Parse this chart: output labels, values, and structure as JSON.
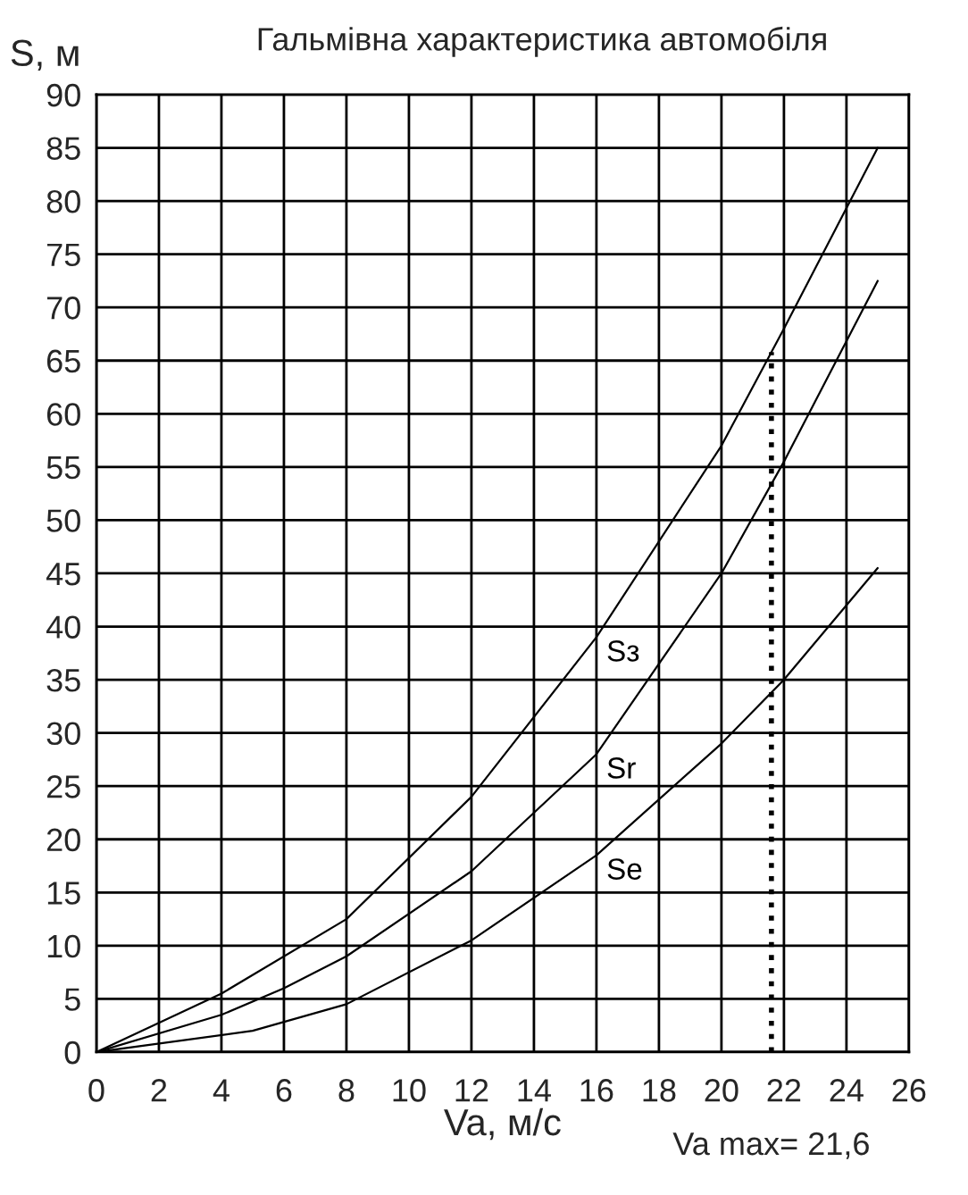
{
  "chart_data": {
    "type": "line",
    "title": "Гальмівна характеристика автомобіля",
    "xlabel": "Va, м/с",
    "ylabel": "S, м",
    "xlim": [
      0,
      26
    ],
    "ylim": [
      0,
      90
    ],
    "xticks": [
      0,
      2,
      4,
      6,
      8,
      10,
      12,
      14,
      16,
      18,
      20,
      22,
      24,
      26
    ],
    "yticks": [
      0,
      5,
      10,
      15,
      20,
      25,
      30,
      35,
      40,
      45,
      50,
      55,
      60,
      65,
      70,
      75,
      80,
      85,
      90
    ],
    "grid": true,
    "legend": false,
    "marker": "none",
    "line_style": "solid",
    "series": [
      {
        "name": "Sз",
        "color": "#000000",
        "x": [
          0,
          4,
          8,
          12,
          16,
          20,
          22,
          25
        ],
        "values": [
          0,
          5.5,
          12.5,
          24,
          39,
          57,
          68,
          85
        ]
      },
      {
        "name": "Sr",
        "color": "#000000",
        "x": [
          0,
          4,
          6,
          8,
          12,
          16,
          20,
          22,
          25
        ],
        "values": [
          0,
          3.5,
          6,
          9,
          17,
          28,
          45,
          55.5,
          72.5
        ]
      },
      {
        "name": "Se",
        "color": "#000000",
        "x": [
          0,
          5,
          8,
          12,
          16,
          20,
          22,
          25
        ],
        "values": [
          0,
          2,
          4.5,
          10.5,
          18.5,
          29,
          35,
          45.5
        ]
      }
    ],
    "ref_lines": [
      {
        "axis": "x",
        "value": 21.6,
        "label": "Va max= 21,6",
        "color": "#000000",
        "line_style": "dotted"
      }
    ]
  }
}
